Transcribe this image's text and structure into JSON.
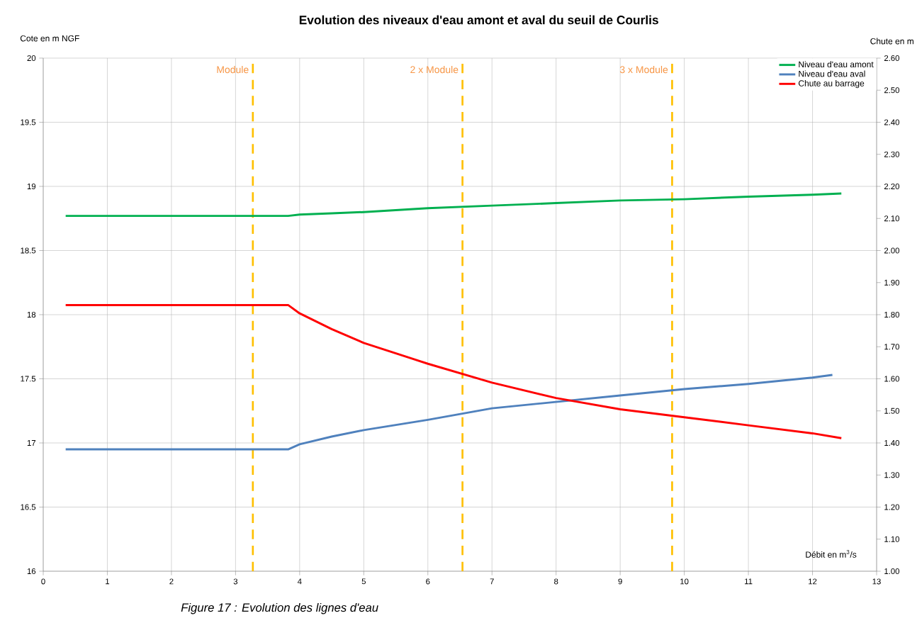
{
  "chart_data": {
    "type": "line",
    "title": "Evolution des niveaux d'eau amont et aval du seuil de Courlis",
    "xlabel": "Débit en m$^{3}$/s",
    "ylabel": "Cote en m NGF",
    "y2label": "Chute en m",
    "x": [
      0.35,
      3.82,
      4,
      4.5,
      5,
      6,
      7,
      8,
      9,
      10,
      11,
      12,
      12.45
    ],
    "series": [
      {
        "name": "Niveau d'eau amont",
        "color": "#00b050",
        "values": [
          18.77,
          18.77,
          18.78,
          18.79,
          18.8,
          18.83,
          18.85,
          18.87,
          18.89,
          18.9,
          18.92,
          18.935,
          18.945
        ]
      },
      {
        "name": "Niveau d'eau aval",
        "color": "#4f81bd",
        "x": [
          0.35,
          3.82,
          4,
          4.5,
          5,
          6,
          7,
          8,
          9,
          10,
          11,
          12,
          12.31
        ],
        "values": [
          16.95,
          16.95,
          16.99,
          17.05,
          17.1,
          17.18,
          17.27,
          17.32,
          17.37,
          17.42,
          17.46,
          17.51,
          17.53
        ]
      },
      {
        "name": "Chute au barrage",
        "color": "#ff0000",
        "axis": "y2",
        "values": [
          1.83,
          1.83,
          1.804,
          1.755,
          1.712,
          1.647,
          1.588,
          1.54,
          1.505,
          1.48,
          1.455,
          1.43,
          1.415
        ]
      }
    ],
    "xlim": [
      0,
      13
    ],
    "xticks": [
      0,
      1,
      2,
      3,
      4,
      5,
      6,
      7,
      8,
      9,
      10,
      11,
      12,
      13
    ],
    "ylim": [
      16,
      20
    ],
    "yticks": [
      16,
      16.5,
      17,
      17.5,
      18,
      18.5,
      19,
      19.5,
      20
    ],
    "y2lim": [
      1.0,
      2.6
    ],
    "y2ticks": [
      {
        "value": 1.0,
        "label": "1.00"
      },
      {
        "value": 1.1,
        "label": "1.10"
      },
      {
        "value": 1.2,
        "label": "1.20"
      },
      {
        "value": 1.3,
        "label": "1.30"
      },
      {
        "value": 1.4,
        "label": "1.40"
      },
      {
        "value": 1.5,
        "label": "1.50"
      },
      {
        "value": 1.6,
        "label": "1.60"
      },
      {
        "value": 1.7,
        "label": "1.70"
      },
      {
        "value": 1.8,
        "label": "1.80"
      },
      {
        "value": 1.9,
        "label": "1.90"
      },
      {
        "value": 2.0,
        "label": "2.00"
      },
      {
        "value": 2.1,
        "label": "2.10"
      },
      {
        "value": 2.2,
        "label": "2.20"
      },
      {
        "value": 2.3,
        "label": "2.30"
      },
      {
        "value": 2.4,
        "label": "2.40"
      },
      {
        "value": 2.5,
        "label": "2.50"
      },
      {
        "value": 2.6,
        "label": "2.60"
      }
    ],
    "ref_lines": [
      {
        "axis": "x",
        "value": 3.27,
        "label": "Module",
        "color": "#ffc000",
        "line_style": "dashed"
      },
      {
        "axis": "x",
        "value": 6.54,
        "label": "2 x Module",
        "color": "#ffc000",
        "line_style": "dashed"
      },
      {
        "axis": "x",
        "value": 9.81,
        "label": "3 x Module",
        "color": "#ffc000",
        "line_style": "dashed"
      }
    ],
    "grid": true,
    "legend": "top right",
    "annotations": [
      "Figure 17 : Evolution des lignes d'eau"
    ]
  }
}
